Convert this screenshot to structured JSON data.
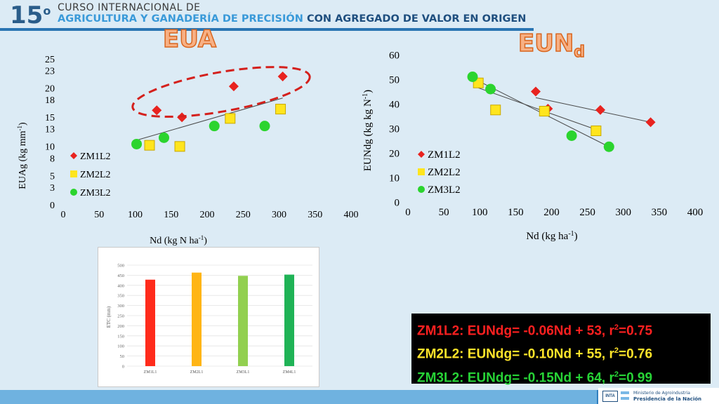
{
  "header": {
    "number": "15",
    "number_suffix": "o",
    "line1": "CURSO INTERNACIONAL DE",
    "line2_part1": "AGRICULTURA Y GANADERÍA DE PRECISIÓN",
    "line2_part2": "CON AGREGADO DE VALOR EN ORIGEN"
  },
  "titles": {
    "left": "EUA",
    "right_main": "EUN",
    "right_sub": "d"
  },
  "chart_data": [
    {
      "type": "scatter",
      "title": "EUA",
      "xlabel": "Nd (kg N ha-1)",
      "ylabel": "EUAg (kg mm-1)",
      "xlim": [
        0,
        400
      ],
      "ylim": [
        0,
        25
      ],
      "xticks": [
        "0",
        "50",
        "100",
        "150",
        "200",
        "250",
        "300",
        "350",
        "400"
      ],
      "yticks": [
        "0",
        "3",
        "5",
        "8",
        "10",
        "13",
        "15",
        "18",
        "20",
        "23",
        "25"
      ],
      "legend_position": "left-bottom",
      "series": [
        {
          "name": "ZM1L2",
          "color": "#e8231f",
          "marker": "diamond",
          "x": [
            130,
            165,
            237,
            305
          ],
          "y": [
            16.2,
            15.0,
            20.3,
            22.0
          ]
        },
        {
          "name": "ZM2L2",
          "color": "#ffe51e",
          "marker": "square",
          "x": [
            120,
            162,
            232,
            302
          ],
          "y": [
            10.2,
            10.0,
            14.8,
            16.4
          ]
        },
        {
          "name": "ZM3L2",
          "color": "#2bd42e",
          "marker": "circle",
          "x": [
            102,
            140,
            210,
            280
          ],
          "y": [
            10.4,
            11.5,
            13.5,
            13.5
          ]
        }
      ],
      "trendline": {
        "x": [
          100,
          305
        ],
        "y": [
          11.0,
          18.3
        ]
      }
    },
    {
      "type": "scatter",
      "title": "EUNd",
      "xlabel": "Nd (kg ha-1)",
      "ylabel": "EUNdg (kg kg N-1)",
      "xlim": [
        0,
        400
      ],
      "ylim": [
        0,
        60
      ],
      "xticks": [
        "0",
        "50",
        "100",
        "150",
        "200",
        "250",
        "300",
        "350",
        "400"
      ],
      "yticks": [
        "0",
        "10",
        "20",
        "30",
        "40",
        "50",
        "60"
      ],
      "legend_position": "left-bottom",
      "series": [
        {
          "name": "ZM1L2",
          "color": "#e8231f",
          "marker": "diamond",
          "x": [
            178,
            195,
            268,
            338
          ],
          "y": [
            45,
            38,
            37.5,
            32.5
          ]
        },
        {
          "name": "ZM2L2",
          "color": "#ffe51e",
          "marker": "square",
          "x": [
            98,
            122,
            190,
            262
          ],
          "y": [
            48.5,
            37.5,
            37,
            29
          ]
        },
        {
          "name": "ZM3L2",
          "color": "#2bd42e",
          "marker": "circle",
          "x": [
            90,
            115,
            228,
            280
          ],
          "y": [
            51,
            46,
            27,
            22.5
          ]
        }
      ],
      "trendlines": [
        {
          "x": [
            178,
            338
          ],
          "y": [
            42.5,
            32.5
          ]
        },
        {
          "x": [
            98,
            262
          ],
          "y": [
            46.5,
            29.5
          ]
        },
        {
          "x": [
            90,
            280
          ],
          "y": [
            50.5,
            22.5
          ]
        }
      ]
    },
    {
      "type": "bar",
      "ylabel": "ETC (mm)",
      "categories": [
        "ZM1L1",
        "ZM2L1",
        "ZM3L1",
        "ZM4L1"
      ],
      "values": [
        428,
        463,
        447,
        453
      ],
      "colors": [
        "#ff2b1b",
        "#ffb516",
        "#92d050",
        "#1fb356"
      ],
      "ylim": [
        0,
        500
      ],
      "yticks": [
        "0",
        "50",
        "100",
        "150",
        "200",
        "250",
        "300",
        "350",
        "400",
        "450",
        "500"
      ]
    }
  ],
  "equations": [
    {
      "text": "ZM1L2: EUNdg= -0.06Nd + 53, r",
      "sup": "2",
      "tail": "=0.75",
      "color": "#ff2020"
    },
    {
      "text": "ZM2L2: EUNdg= -0.10Nd + 55, r",
      "sup": "2",
      "tail": "=0.76",
      "color": "#ffe42a"
    },
    {
      "text": "ZM3L2: EUNdg= -0.15Nd + 64, r",
      "sup": "2",
      "tail": "=0.99",
      "color": "#27d336"
    }
  ],
  "footer": {
    "ministry_line1": "Ministerio de Agroindustria",
    "ministry_line2": "Presidencia de la Nación",
    "inta": "INTA"
  }
}
